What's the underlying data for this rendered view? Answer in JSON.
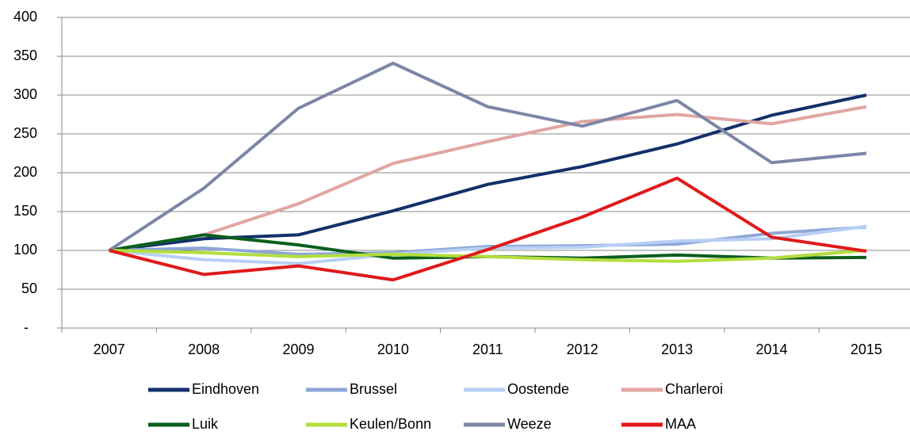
{
  "chart_data": {
    "type": "line",
    "categories": [
      "2007",
      "2008",
      "2009",
      "2010",
      "2011",
      "2012",
      "2013",
      "2014",
      "2015"
    ],
    "series": [
      {
        "name": "Eindhoven",
        "color": "#13306b",
        "values": [
          100,
          115,
          120,
          151,
          185,
          208,
          237,
          274,
          300
        ]
      },
      {
        "name": "Brussel",
        "color": "#8ea7d6",
        "values": [
          100,
          103,
          95,
          97,
          105,
          106,
          108,
          122,
          130
        ]
      },
      {
        "name": "Oostende",
        "color": "#b7cff5",
        "values": [
          100,
          88,
          83,
          95,
          103,
          104,
          112,
          115,
          131
        ]
      },
      {
        "name": "Charleroi",
        "color": "#e0a6a2",
        "values": [
          100,
          120,
          160,
          212,
          240,
          266,
          275,
          263,
          285
        ]
      },
      {
        "name": "Luik",
        "color": "#0b5e1c",
        "values": [
          100,
          120,
          107,
          90,
          92,
          90,
          94,
          90,
          91
        ]
      },
      {
        "name": "Keulen/Bonn",
        "color": "#b3de3e",
        "values": [
          100,
          97,
          92,
          95,
          92,
          88,
          86,
          90,
          100
        ]
      },
      {
        "name": "Weeze",
        "color": "#7c86a6",
        "values": [
          100,
          180,
          283,
          341,
          285,
          260,
          293,
          213,
          225
        ]
      },
      {
        "name": "MAA",
        "color": "#e0191b",
        "values": [
          100,
          69,
          80,
          62,
          101,
          143,
          193,
          117,
          99
        ]
      }
    ],
    "ylim": [
      0,
      400
    ],
    "yticks": [
      {
        "value": 0,
        "label": "-"
      },
      50,
      100,
      150,
      200,
      250,
      300,
      350,
      400
    ],
    "grid": true
  }
}
